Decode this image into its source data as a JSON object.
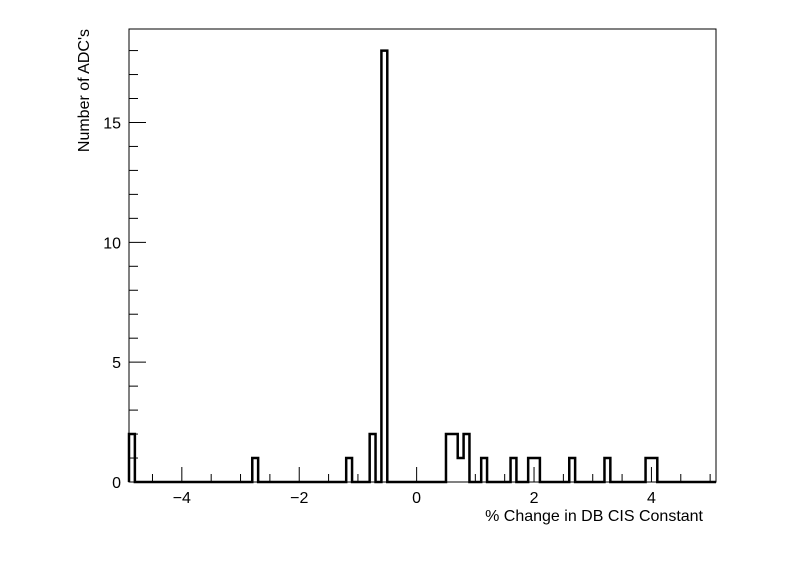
{
  "chart_data": {
    "type": "histogram",
    "title": "",
    "xlabel": "% Change in DB CIS Constant",
    "ylabel": "Number of ADC's",
    "xlim": [
      -4.9,
      5.1
    ],
    "ylim": [
      0,
      18.9
    ],
    "bin_width": 0.1,
    "grid": false,
    "x_ticks": [
      -4,
      -2,
      0,
      2,
      4
    ],
    "x_tick_labels": [
      "−4",
      "−2",
      "0",
      "2",
      "4"
    ],
    "y_ticks": [
      0,
      5,
      10,
      15
    ],
    "y_tick_labels": [
      "0",
      "5",
      "10",
      "15"
    ],
    "bins": [
      {
        "x": -4.9,
        "count": 2
      },
      {
        "x": -2.8,
        "count": 1
      },
      {
        "x": -1.2,
        "count": 1
      },
      {
        "x": -0.8,
        "count": 2
      },
      {
        "x": -0.6,
        "count": 18
      },
      {
        "x": 0.5,
        "count": 2
      },
      {
        "x": 0.6,
        "count": 2
      },
      {
        "x": 0.7,
        "count": 1
      },
      {
        "x": 0.8,
        "count": 2
      },
      {
        "x": 1.1,
        "count": 1
      },
      {
        "x": 1.6,
        "count": 1
      },
      {
        "x": 1.9,
        "count": 1
      },
      {
        "x": 2.0,
        "count": 1
      },
      {
        "x": 2.6,
        "count": 1
      },
      {
        "x": 3.2,
        "count": 1
      },
      {
        "x": 3.9,
        "count": 1
      },
      {
        "x": 4.0,
        "count": 1
      }
    ]
  }
}
